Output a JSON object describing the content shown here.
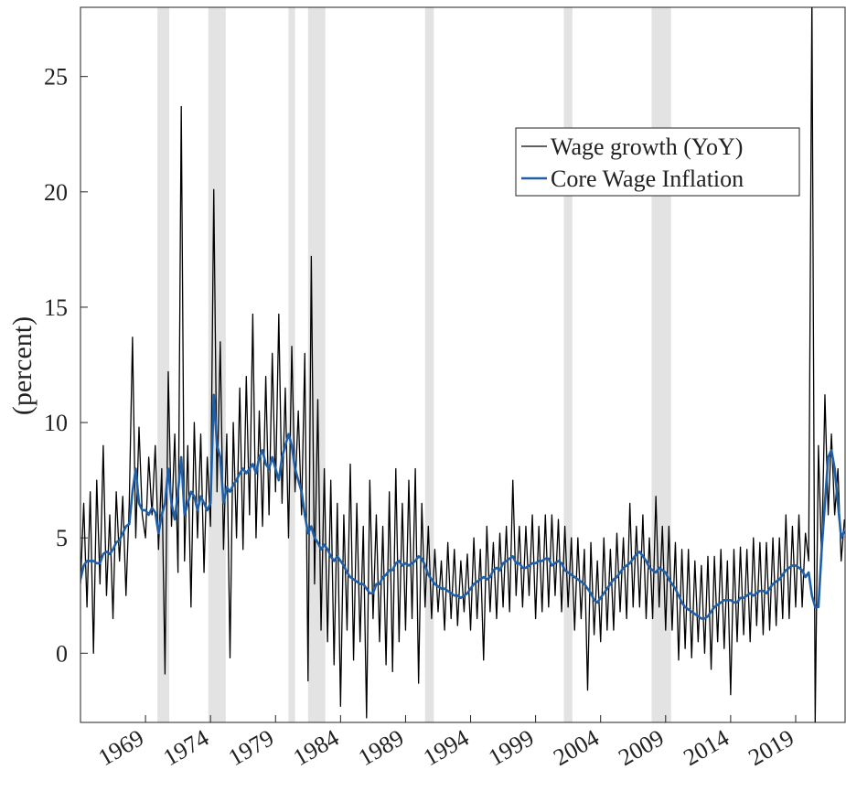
{
  "chart_data": {
    "type": "line",
    "y_label": "(percent)",
    "xlim": [
      1964,
      2022.8
    ],
    "ylim": [
      -3,
      28
    ],
    "xticks": [
      1969,
      1974,
      1979,
      1984,
      1989,
      1994,
      1999,
      2004,
      2009,
      2014,
      2019
    ],
    "yticks": [
      0,
      5,
      10,
      15,
      20,
      25
    ],
    "legend": "upper right",
    "grid": false,
    "shading_color": "#e3e3e3",
    "recessions": [
      [
        1969.92,
        1970.83
      ],
      [
        1973.83,
        1975.17
      ],
      [
        1980.0,
        1980.5
      ],
      [
        1981.5,
        1982.83
      ],
      [
        1990.5,
        1991.17
      ],
      [
        2001.17,
        2001.83
      ],
      [
        2007.92,
        2009.42
      ]
    ],
    "x": [
      1964,
      1964.25,
      1964.5,
      1964.75,
      1965,
      1965.25,
      1965.5,
      1965.75,
      1966,
      1966.25,
      1966.5,
      1966.75,
      1967,
      1967.25,
      1967.5,
      1967.75,
      1968,
      1968.25,
      1968.5,
      1968.75,
      1969,
      1969.25,
      1969.5,
      1969.75,
      1970,
      1970.25,
      1970.5,
      1970.75,
      1971,
      1971.25,
      1971.5,
      1971.75,
      1972,
      1972.25,
      1972.5,
      1972.75,
      1973,
      1973.25,
      1973.5,
      1973.75,
      1974,
      1974.25,
      1974.5,
      1974.75,
      1975,
      1975.25,
      1975.5,
      1975.75,
      1976,
      1976.25,
      1976.5,
      1976.75,
      1977,
      1977.25,
      1977.5,
      1977.75,
      1978,
      1978.25,
      1978.5,
      1978.75,
      1979,
      1979.25,
      1979.5,
      1979.75,
      1980,
      1980.25,
      1980.5,
      1980.75,
      1981,
      1981.25,
      1981.5,
      1981.75,
      1982,
      1982.25,
      1982.5,
      1982.75,
      1983,
      1983.25,
      1983.5,
      1983.75,
      1984,
      1984.25,
      1984.5,
      1984.75,
      1985,
      1985.25,
      1985.5,
      1985.75,
      1986,
      1986.25,
      1986.5,
      1986.75,
      1987,
      1987.25,
      1987.5,
      1987.75,
      1988,
      1988.25,
      1988.5,
      1988.75,
      1989,
      1989.25,
      1989.5,
      1989.75,
      1990,
      1990.25,
      1990.5,
      1990.75,
      1991,
      1991.25,
      1991.5,
      1991.75,
      1992,
      1992.25,
      1992.5,
      1992.75,
      1993,
      1993.25,
      1993.5,
      1993.75,
      1994,
      1994.25,
      1994.5,
      1994.75,
      1995,
      1995.25,
      1995.5,
      1995.75,
      1996,
      1996.25,
      1996.5,
      1996.75,
      1997,
      1997.25,
      1997.5,
      1997.75,
      1998,
      1998.25,
      1998.5,
      1998.75,
      1999,
      1999.25,
      1999.5,
      1999.75,
      2000,
      2000.25,
      2000.5,
      2000.75,
      2001,
      2001.25,
      2001.5,
      2001.75,
      2002,
      2002.25,
      2002.5,
      2002.75,
      2003,
      2003.25,
      2003.5,
      2003.75,
      2004,
      2004.25,
      2004.5,
      2004.75,
      2005,
      2005.25,
      2005.5,
      2005.75,
      2006,
      2006.25,
      2006.5,
      2006.75,
      2007,
      2007.25,
      2007.5,
      2007.75,
      2008,
      2008.25,
      2008.5,
      2008.75,
      2009,
      2009.25,
      2009.5,
      2009.75,
      2010,
      2010.25,
      2010.5,
      2010.75,
      2011,
      2011.25,
      2011.5,
      2011.75,
      2012,
      2012.25,
      2012.5,
      2012.75,
      2013,
      2013.25,
      2013.5,
      2013.75,
      2014,
      2014.25,
      2014.5,
      2014.75,
      2015,
      2015.25,
      2015.5,
      2015.75,
      2016,
      2016.25,
      2016.5,
      2016.75,
      2017,
      2017.25,
      2017.5,
      2017.75,
      2018,
      2018.25,
      2018.5,
      2018.75,
      2019,
      2019.25,
      2019.5,
      2019.75,
      2020,
      2020.25,
      2020.5,
      2020.75,
      2021,
      2021.25,
      2021.5,
      2021.75,
      2022,
      2022.25,
      2022.5,
      2022.75
    ],
    "series": [
      {
        "name": "Wage growth (YoY)",
        "color": "#000000",
        "width": 1.3,
        "values": [
          3.0,
          6.5,
          2.0,
          7.0,
          0.0,
          7.5,
          3.0,
          9.0,
          2.5,
          6.0,
          1.5,
          7.0,
          4.0,
          6.8,
          2.5,
          6.5,
          13.7,
          5.0,
          9.8,
          6.0,
          5.0,
          8.5,
          6.0,
          9.0,
          4.5,
          8.0,
          -0.9,
          12.2,
          5.5,
          9.5,
          3.5,
          23.7,
          4.0,
          9.0,
          2.0,
          10.0,
          5.0,
          9.5,
          3.5,
          8.5,
          5.5,
          20.1,
          7.0,
          13.5,
          4.5,
          9.5,
          -0.2,
          10.0,
          5.0,
          11.5,
          4.5,
          12.0,
          6.0,
          14.7,
          5.0,
          10.5,
          5.5,
          12.0,
          6.0,
          13.0,
          7.0,
          14.7,
          6.5,
          11.5,
          5.0,
          13.3,
          7.0,
          10.5,
          6.0,
          13.0,
          -1.2,
          17.2,
          3.0,
          11.0,
          1.0,
          8.0,
          0.5,
          7.5,
          -0.5,
          6.5,
          -2.3,
          6.0,
          1.0,
          8.2,
          -0.3,
          6.5,
          0.5,
          5.5,
          -2.8,
          7.5,
          1.5,
          6.0,
          0.5,
          5.5,
          -0.5,
          7.0,
          -0.8,
          8.0,
          0.5,
          6.5,
          1.0,
          7.5,
          1.5,
          8.0,
          -1.3,
          6.5,
          2.0,
          5.5,
          1.5,
          4.5,
          1.8,
          4.0,
          1.0,
          4.8,
          1.5,
          4.5,
          1.2,
          4.0,
          1.8,
          4.3,
          1.0,
          5.0,
          1.5,
          4.5,
          -0.3,
          5.5,
          1.8,
          4.8,
          1.5,
          5.2,
          2.0,
          5.5,
          1.8,
          7.5,
          2.5,
          5.5,
          2.0,
          5.5,
          2.5,
          6.0,
          1.5,
          5.5,
          1.8,
          6.0,
          2.0,
          6.0,
          2.5,
          5.8,
          1.8,
          5.5,
          2.0,
          5.0,
          1.0,
          5.0,
          1.5,
          4.5,
          -1.6,
          4.8,
          0.8,
          4.0,
          0.5,
          5.0,
          1.0,
          4.5,
          1.0,
          5.2,
          1.8,
          5.0,
          1.5,
          6.5,
          2.0,
          5.5,
          2.0,
          6.0,
          1.5,
          5.0,
          1.5,
          6.8,
          2.0,
          5.5,
          1.0,
          5.5,
          1.0,
          4.8,
          -0.3,
          4.5,
          0.2,
          4.5,
          -0.2,
          4.0,
          0.5,
          3.8,
          0.0,
          4.2,
          -0.7,
          4.2,
          0.5,
          4.5,
          0.2,
          4.0,
          -1.8,
          4.5,
          0.5,
          4.6,
          0.8,
          4.5,
          0.5,
          5.0,
          1.2,
          4.8,
          0.8,
          4.8,
          1.0,
          5.0,
          1.2,
          5.0,
          1.5,
          6.0,
          1.5,
          5.5,
          2.0,
          6.0,
          2.0,
          5.2,
          4.0,
          28.5,
          -3.0,
          9.0,
          4.0,
          11.2,
          6.0,
          9.5,
          6.0,
          8.0,
          4.0,
          5.8
        ]
      },
      {
        "name": "Core Wage Inflation",
        "color": "#1f5fa8",
        "width": 2.6,
        "values": [
          3.2,
          3.8,
          4.0,
          4.0,
          4.0,
          3.9,
          3.9,
          4.3,
          4.4,
          4.3,
          4.5,
          4.8,
          4.9,
          5.2,
          5.5,
          5.6,
          7.0,
          8.0,
          6.5,
          6.2,
          6.2,
          6.0,
          6.3,
          6.1,
          5.2,
          6.0,
          6.5,
          8.0,
          6.5,
          5.8,
          7.0,
          8.5,
          6.0,
          6.5,
          7.0,
          6.8,
          6.2,
          6.8,
          6.5,
          6.2,
          6.5,
          11.2,
          9.0,
          8.5,
          6.5,
          7.2,
          7.0,
          7.3,
          7.5,
          7.8,
          8.0,
          7.8,
          8.0,
          8.2,
          7.8,
          8.5,
          8.8,
          8.2,
          8.0,
          8.5,
          8.0,
          7.5,
          8.5,
          9.0,
          9.5,
          9.0,
          8.0,
          7.5,
          7.0,
          6.0,
          5.2,
          5.5,
          5.0,
          4.8,
          4.5,
          4.7,
          4.5,
          4.2,
          4.0,
          4.2,
          4.0,
          3.8,
          3.5,
          3.3,
          3.2,
          3.1,
          3.0,
          3.0,
          2.8,
          2.6,
          2.6,
          3.0,
          3.0,
          3.3,
          3.4,
          3.6,
          3.6,
          3.9,
          4.0,
          3.8,
          3.9,
          3.8,
          3.9,
          4.0,
          4.2,
          4.1,
          3.8,
          3.4,
          3.2,
          3.0,
          2.9,
          2.8,
          2.8,
          2.7,
          2.6,
          2.5,
          2.5,
          2.4,
          2.5,
          2.6,
          2.8,
          3.0,
          3.1,
          3.2,
          3.3,
          3.2,
          3.3,
          3.6,
          3.7,
          3.6,
          3.9,
          4.0,
          4.1,
          4.2,
          3.9,
          3.9,
          3.7,
          3.7,
          3.8,
          3.9,
          3.9,
          4.0,
          4.0,
          4.1,
          4.1,
          3.8,
          3.9,
          4.0,
          3.9,
          3.6,
          3.5,
          3.4,
          3.3,
          3.2,
          3.1,
          3.0,
          2.8,
          2.6,
          2.3,
          2.2,
          2.4,
          2.6,
          2.8,
          3.0,
          3.2,
          3.3,
          3.5,
          3.7,
          3.8,
          3.9,
          4.1,
          4.3,
          4.4,
          4.2,
          4.0,
          3.7,
          3.6,
          3.5,
          3.7,
          3.6,
          3.5,
          3.2,
          3.0,
          2.8,
          2.5,
          2.2,
          2.0,
          1.9,
          1.8,
          1.7,
          1.6,
          1.5,
          1.5,
          1.6,
          1.8,
          2.0,
          2.1,
          2.2,
          2.3,
          2.3,
          2.3,
          2.2,
          2.2,
          2.4,
          2.4,
          2.5,
          2.6,
          2.5,
          2.6,
          2.7,
          2.7,
          2.6,
          2.8,
          3.0,
          3.1,
          3.2,
          3.4,
          3.6,
          3.7,
          3.8,
          3.8,
          3.7,
          3.6,
          3.3,
          3.5,
          2.5,
          2.0,
          2.0,
          4.5,
          6.5,
          8.5,
          8.8,
          8.0,
          6.5,
          5.0,
          5.3
        ]
      }
    ]
  }
}
